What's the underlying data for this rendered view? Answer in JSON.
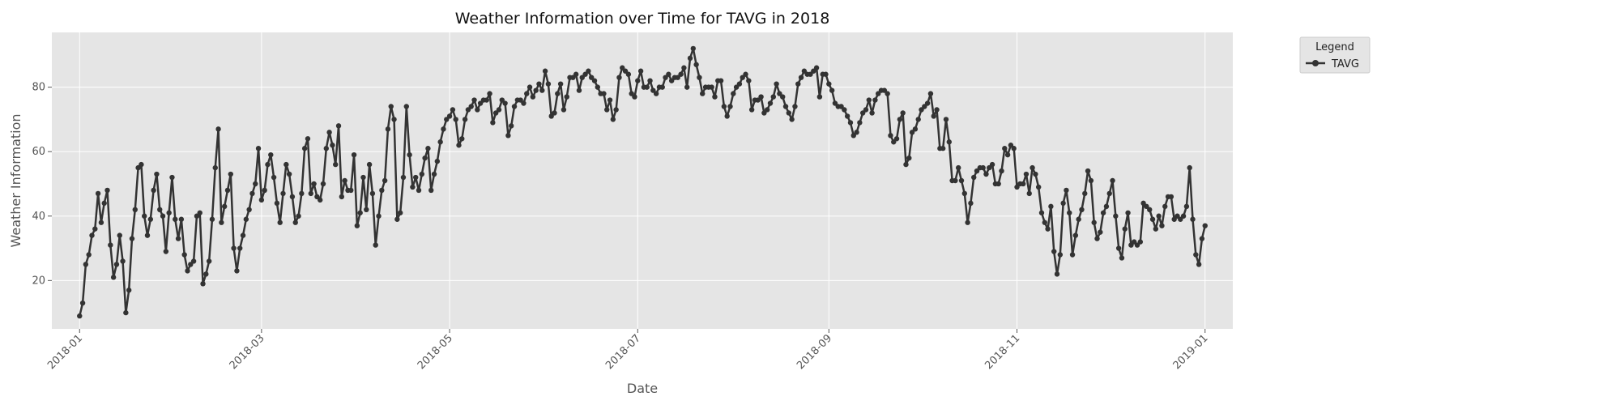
{
  "chart_data": {
    "type": "line",
    "title": "Weather Information over Time for TAVG in 2018",
    "xlabel": "Date",
    "ylabel": "Weather Information",
    "x_range": [
      "2017-12-23",
      "2019-01-10"
    ],
    "ylim": [
      5,
      97
    ],
    "x_ticks": [
      "2018-01",
      "2018-03",
      "2018-05",
      "2018-07",
      "2018-09",
      "2018-11",
      "2019-01"
    ],
    "y_ticks": [
      20,
      40,
      60,
      80
    ],
    "grid": true,
    "legend": {
      "title": "Legend",
      "placement": "outside-top-right"
    },
    "series": [
      {
        "name": "TAVG",
        "color": "#333333",
        "start_date": "2018-01-01",
        "values": [
          9,
          13,
          25,
          28,
          34,
          36,
          47,
          38,
          44,
          48,
          31,
          21,
          25,
          34,
          26,
          10,
          17,
          33,
          42,
          55,
          56,
          40,
          34,
          39,
          48,
          53,
          42,
          40,
          29,
          41,
          52,
          39,
          33,
          39,
          28,
          23,
          25,
          26,
          40,
          41,
          19,
          22,
          26,
          39,
          55,
          67,
          38,
          43,
          48,
          53,
          30,
          23,
          30,
          34,
          39,
          42,
          47,
          50,
          61,
          45,
          48,
          56,
          59,
          52,
          44,
          38,
          47,
          56,
          53,
          46,
          38,
          40,
          47,
          61,
          64,
          47,
          50,
          46,
          45,
          50,
          61,
          66,
          62,
          56,
          68,
          46,
          51,
          48,
          48,
          59,
          37,
          41,
          52,
          42,
          56,
          47,
          31,
          40,
          48,
          51,
          67,
          74,
          70,
          39,
          41,
          52,
          74,
          59,
          49,
          52,
          48,
          53,
          58,
          61,
          48,
          53,
          57,
          63,
          67,
          70,
          71,
          73,
          70,
          62,
          64,
          70,
          73,
          74,
          76,
          73,
          75,
          76,
          76,
          78,
          69,
          72,
          73,
          76,
          75,
          65,
          68,
          74,
          76,
          76,
          75,
          78,
          80,
          77,
          79,
          81,
          79,
          85,
          81,
          71,
          72,
          78,
          81,
          73,
          77,
          83,
          83,
          84,
          79,
          83,
          84,
          85,
          83,
          82,
          80,
          78,
          78,
          73,
          76,
          70,
          73,
          83,
          86,
          85,
          84,
          78,
          77,
          82,
          85,
          80,
          80,
          82,
          79,
          78,
          80,
          80,
          83,
          84,
          82,
          83,
          83,
          84,
          86,
          80,
          89,
          92,
          87,
          83,
          78,
          80,
          80,
          80,
          77,
          82,
          82,
          74,
          71,
          74,
          78,
          80,
          81,
          83,
          84,
          82,
          73,
          76,
          76,
          77,
          72,
          73,
          75,
          77,
          81,
          78,
          77,
          74,
          72,
          70,
          74,
          81,
          83,
          85,
          84,
          84,
          85,
          86,
          77,
          84,
          84,
          81,
          79,
          75,
          74,
          74,
          73,
          71,
          69,
          65,
          66,
          69,
          72,
          73,
          76,
          72,
          76,
          78,
          79,
          79,
          78,
          65,
          63,
          64,
          70,
          72,
          56,
          58,
          66,
          67,
          70,
          73,
          74,
          75,
          78,
          71,
          73,
          61,
          61,
          70,
          63,
          51,
          51,
          55,
          51,
          47,
          38,
          44,
          52,
          54,
          55,
          55,
          53,
          55,
          56,
          50,
          50,
          54,
          61,
          59,
          62,
          61,
          49,
          50,
          50,
          53,
          47,
          55,
          53,
          49,
          41,
          38,
          36,
          43,
          29,
          22,
          28,
          44,
          48,
          41,
          28,
          34,
          39,
          42,
          47,
          54,
          51,
          38,
          33,
          35,
          41,
          43,
          47,
          51,
          40,
          30,
          27,
          36,
          41,
          31,
          32,
          31,
          32,
          44,
          43,
          42,
          39,
          36,
          40,
          37,
          43,
          46,
          46,
          39,
          40,
          39,
          40,
          43,
          55,
          39,
          28,
          25,
          33,
          37
        ]
      }
    ]
  }
}
